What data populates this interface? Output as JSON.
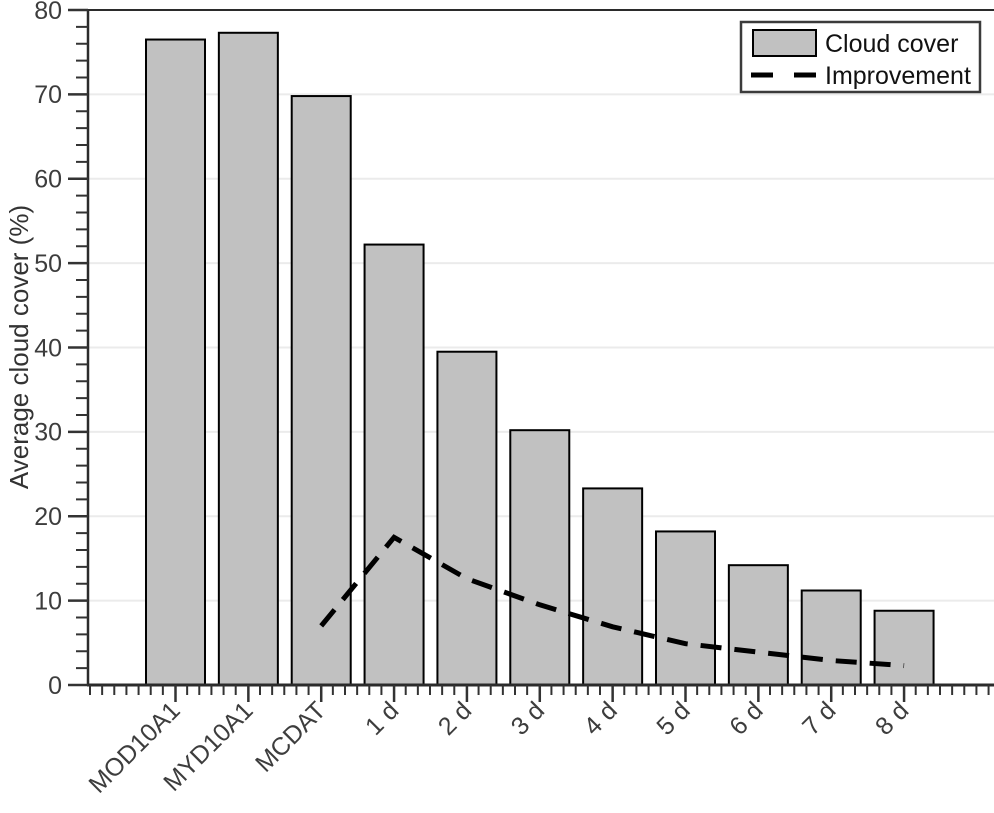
{
  "chart_data": {
    "type": "bar",
    "title": "",
    "xlabel": "",
    "ylabel": "Average cloud cover (%)",
    "ylim": [
      0,
      80
    ],
    "y_major_ticks": [
      0,
      10,
      20,
      30,
      40,
      50,
      60,
      70,
      80
    ],
    "y_minor_step": 2,
    "grid": "horizontal light gray lines at major y ticks",
    "categories": [
      "MOD10A1",
      "MYD10A1",
      "MCDAT",
      "1 d",
      "2 d",
      "3 d",
      "4 d",
      "5 d",
      "6 d",
      "7 d",
      "8 d"
    ],
    "series": [
      {
        "name": "Cloud cover",
        "type": "bar",
        "values": [
          76.5,
          77.3,
          69.8,
          52.2,
          39.5,
          30.2,
          23.3,
          18.2,
          14.2,
          11.2,
          8.8
        ]
      },
      {
        "name": "Improvement",
        "type": "dashed-line",
        "values": [
          null,
          null,
          7.0,
          17.5,
          12.6,
          9.5,
          6.9,
          4.9,
          3.9,
          2.9,
          2.3
        ]
      }
    ],
    "legend": {
      "position": "top-right",
      "entries": [
        "Cloud cover",
        "Improvement"
      ]
    }
  },
  "colors": {
    "background": "#ffffff",
    "bar_fill": "#c1c1c1",
    "bar_edge": "#000000",
    "improvement_line": "#000000",
    "gridline": "#ebebeb",
    "axis": "#2b2b2b",
    "tick": "#333333",
    "tick_label": "#3d3d3d",
    "legend_border": "#3b3b3b",
    "legend_text": "#111111"
  }
}
